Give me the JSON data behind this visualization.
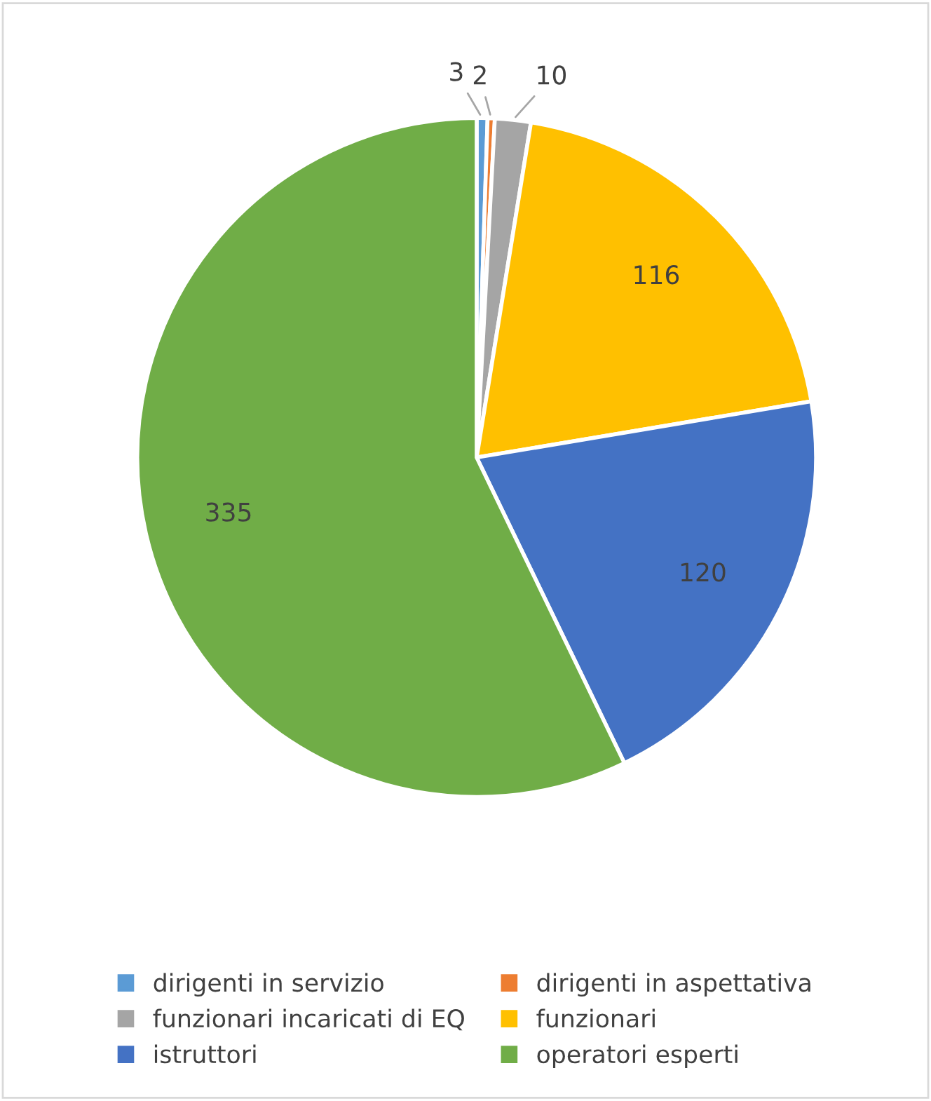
{
  "chart_data": {
    "type": "pie",
    "categories": [
      "dirigenti in servizio",
      "dirigenti in aspettativa",
      "funzionari incaricati di EQ",
      "funzionari",
      "istruttori",
      "operatori esperti"
    ],
    "values": [
      3,
      2,
      10,
      116,
      120,
      335
    ],
    "colors": [
      "#5b9bd5",
      "#ed7d31",
      "#a5a5a5",
      "#ffc000",
      "#4472c4",
      "#70ad47"
    ],
    "data_labels": true,
    "legend": "bottom"
  }
}
